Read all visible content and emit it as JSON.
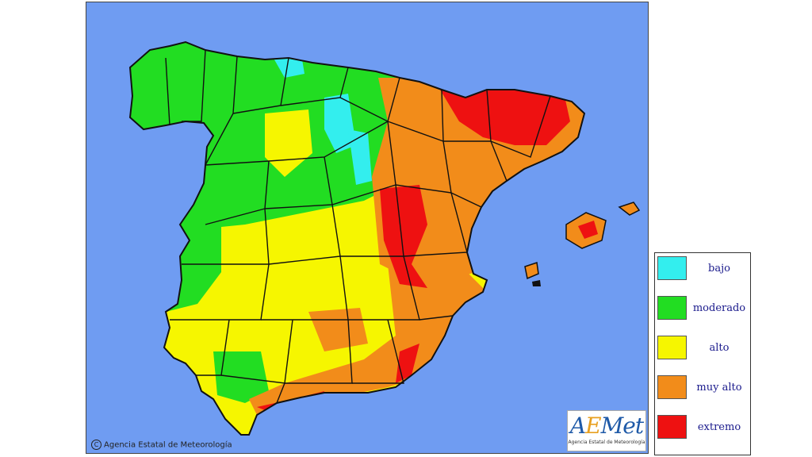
{
  "map": {
    "copyright_symbol": "C",
    "copyright_text": "Agencia Estatal de Meteorología",
    "logo_text_a": "A",
    "logo_text_e": "E",
    "logo_text_rest": "Met",
    "logo_subtitle": "Agencia Estatal de Meteorología",
    "colors": {
      "sea": "#6f9cf2",
      "bajo": "#33eeee",
      "moderado": "#22dd22",
      "alto": "#f6f600",
      "muy_alto": "#f28c1a",
      "extremo": "#ee1111"
    }
  },
  "legend": {
    "items": [
      {
        "label": "bajo",
        "color": "#33eeee"
      },
      {
        "label": "moderado",
        "color": "#22dd22"
      },
      {
        "label": "alto",
        "color": "#f6f600"
      },
      {
        "label": "muy alto",
        "color": "#f28c1a"
      },
      {
        "label": "extremo",
        "color": "#ee1111"
      }
    ]
  }
}
